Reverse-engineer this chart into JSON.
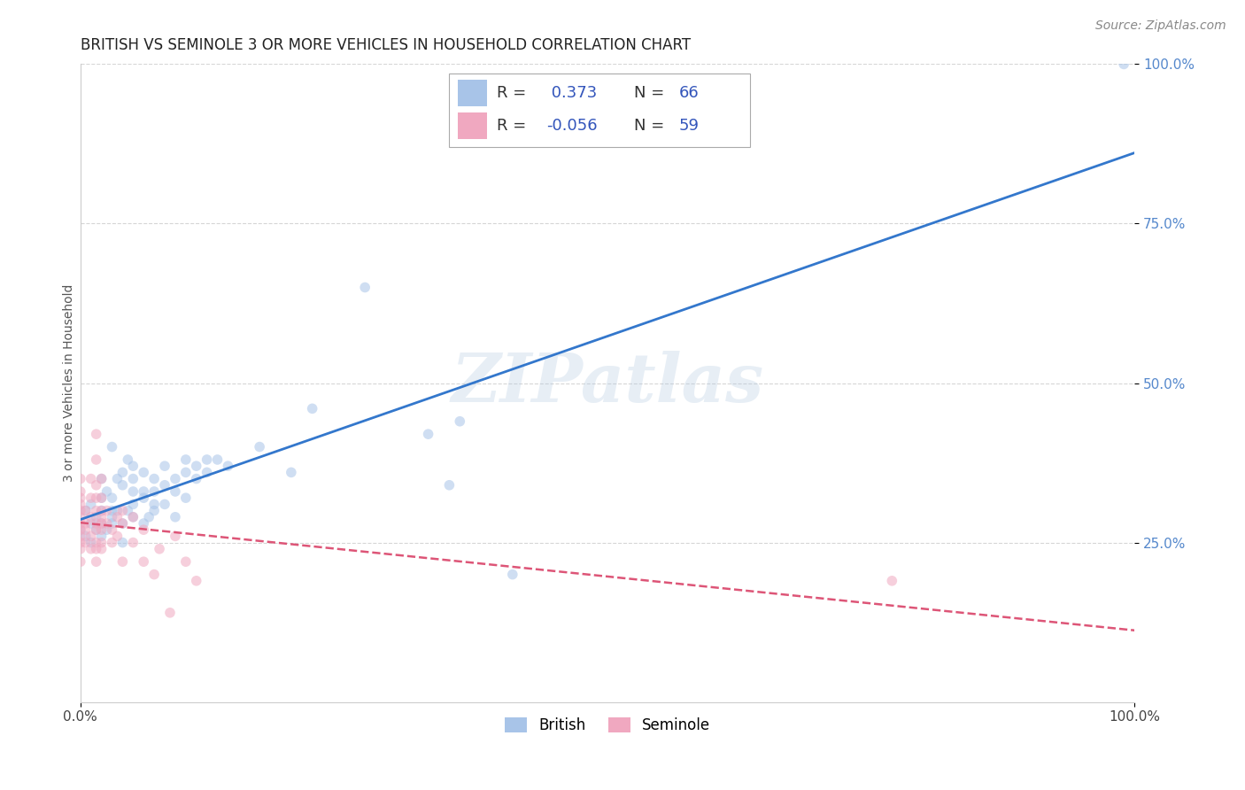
{
  "title": "BRITISH VS SEMINOLE 3 OR MORE VEHICLES IN HOUSEHOLD CORRELATION CHART",
  "source": "Source: ZipAtlas.com",
  "ylabel": "3 or more Vehicles in Household",
  "xlim": [
    0,
    1.0
  ],
  "ylim": [
    0,
    1.0
  ],
  "british_r": 0.373,
  "british_n": 66,
  "seminole_r": -0.056,
  "seminole_n": 59,
  "british_color": "#a8c4e8",
  "seminole_color": "#f0a8c0",
  "trend_british_color": "#3377cc",
  "trend_seminole_color": "#dd5577",
  "watermark": "ZIPatlas",
  "watermark_color": "#b0c8e0",
  "legend_r_color": "#3355bb",
  "british_scatter": [
    [
      0.0,
      0.27
    ],
    [
      0.005,
      0.26
    ],
    [
      0.005,
      0.3
    ],
    [
      0.01,
      0.25
    ],
    [
      0.01,
      0.28
    ],
    [
      0.01,
      0.31
    ],
    [
      0.015,
      0.27
    ],
    [
      0.015,
      0.29
    ],
    [
      0.02,
      0.26
    ],
    [
      0.02,
      0.3
    ],
    [
      0.02,
      0.32
    ],
    [
      0.02,
      0.35
    ],
    [
      0.02,
      0.28
    ],
    [
      0.025,
      0.33
    ],
    [
      0.025,
      0.27
    ],
    [
      0.03,
      0.3
    ],
    [
      0.03,
      0.4
    ],
    [
      0.03,
      0.28
    ],
    [
      0.03,
      0.29
    ],
    [
      0.03,
      0.32
    ],
    [
      0.035,
      0.35
    ],
    [
      0.035,
      0.3
    ],
    [
      0.04,
      0.28
    ],
    [
      0.04,
      0.34
    ],
    [
      0.04,
      0.36
    ],
    [
      0.04,
      0.25
    ],
    [
      0.045,
      0.38
    ],
    [
      0.045,
      0.3
    ],
    [
      0.05,
      0.33
    ],
    [
      0.05,
      0.35
    ],
    [
      0.05,
      0.31
    ],
    [
      0.05,
      0.29
    ],
    [
      0.05,
      0.37
    ],
    [
      0.06,
      0.33
    ],
    [
      0.06,
      0.28
    ],
    [
      0.06,
      0.36
    ],
    [
      0.06,
      0.32
    ],
    [
      0.065,
      0.29
    ],
    [
      0.07,
      0.35
    ],
    [
      0.07,
      0.31
    ],
    [
      0.07,
      0.3
    ],
    [
      0.07,
      0.33
    ],
    [
      0.08,
      0.37
    ],
    [
      0.08,
      0.31
    ],
    [
      0.08,
      0.34
    ],
    [
      0.09,
      0.29
    ],
    [
      0.09,
      0.35
    ],
    [
      0.09,
      0.33
    ],
    [
      0.1,
      0.36
    ],
    [
      0.1,
      0.38
    ],
    [
      0.1,
      0.32
    ],
    [
      0.11,
      0.35
    ],
    [
      0.11,
      0.37
    ],
    [
      0.12,
      0.36
    ],
    [
      0.12,
      0.38
    ],
    [
      0.13,
      0.38
    ],
    [
      0.14,
      0.37
    ],
    [
      0.17,
      0.4
    ],
    [
      0.2,
      0.36
    ],
    [
      0.22,
      0.46
    ],
    [
      0.27,
      0.65
    ],
    [
      0.33,
      0.42
    ],
    [
      0.35,
      0.34
    ],
    [
      0.36,
      0.44
    ],
    [
      0.41,
      0.2
    ],
    [
      0.99,
      1.0
    ]
  ],
  "seminole_scatter": [
    [
      0.0,
      0.3
    ],
    [
      0.0,
      0.28
    ],
    [
      0.0,
      0.32
    ],
    [
      0.0,
      0.25
    ],
    [
      0.0,
      0.27
    ],
    [
      0.0,
      0.24
    ],
    [
      0.0,
      0.29
    ],
    [
      0.0,
      0.26
    ],
    [
      0.0,
      0.33
    ],
    [
      0.0,
      0.31
    ],
    [
      0.0,
      0.35
    ],
    [
      0.0,
      0.22
    ],
    [
      0.005,
      0.3
    ],
    [
      0.005,
      0.28
    ],
    [
      0.005,
      0.25
    ],
    [
      0.005,
      0.27
    ],
    [
      0.01,
      0.32
    ],
    [
      0.01,
      0.35
    ],
    [
      0.01,
      0.29
    ],
    [
      0.01,
      0.24
    ],
    [
      0.01,
      0.26
    ],
    [
      0.015,
      0.3
    ],
    [
      0.015,
      0.28
    ],
    [
      0.015,
      0.32
    ],
    [
      0.015,
      0.25
    ],
    [
      0.015,
      0.27
    ],
    [
      0.015,
      0.24
    ],
    [
      0.015,
      0.34
    ],
    [
      0.015,
      0.38
    ],
    [
      0.015,
      0.42
    ],
    [
      0.015,
      0.22
    ],
    [
      0.02,
      0.3
    ],
    [
      0.02,
      0.28
    ],
    [
      0.02,
      0.25
    ],
    [
      0.02,
      0.27
    ],
    [
      0.02,
      0.24
    ],
    [
      0.02,
      0.29
    ],
    [
      0.02,
      0.32
    ],
    [
      0.02,
      0.35
    ],
    [
      0.025,
      0.3
    ],
    [
      0.025,
      0.28
    ],
    [
      0.03,
      0.25
    ],
    [
      0.03,
      0.27
    ],
    [
      0.035,
      0.29
    ],
    [
      0.035,
      0.26
    ],
    [
      0.04,
      0.22
    ],
    [
      0.04,
      0.28
    ],
    [
      0.04,
      0.3
    ],
    [
      0.05,
      0.25
    ],
    [
      0.05,
      0.29
    ],
    [
      0.06,
      0.27
    ],
    [
      0.06,
      0.22
    ],
    [
      0.07,
      0.2
    ],
    [
      0.075,
      0.24
    ],
    [
      0.085,
      0.14
    ],
    [
      0.09,
      0.26
    ],
    [
      0.1,
      0.22
    ],
    [
      0.11,
      0.19
    ],
    [
      0.77,
      0.19
    ]
  ],
  "title_fontsize": 12,
  "axis_label_fontsize": 10,
  "tick_fontsize": 11,
  "legend_fontsize": 13,
  "source_fontsize": 10,
  "marker_size": 70,
  "marker_alpha": 0.55,
  "bg_color": "#ffffff",
  "grid_color": "#cccccc",
  "grid_alpha": 0.8
}
